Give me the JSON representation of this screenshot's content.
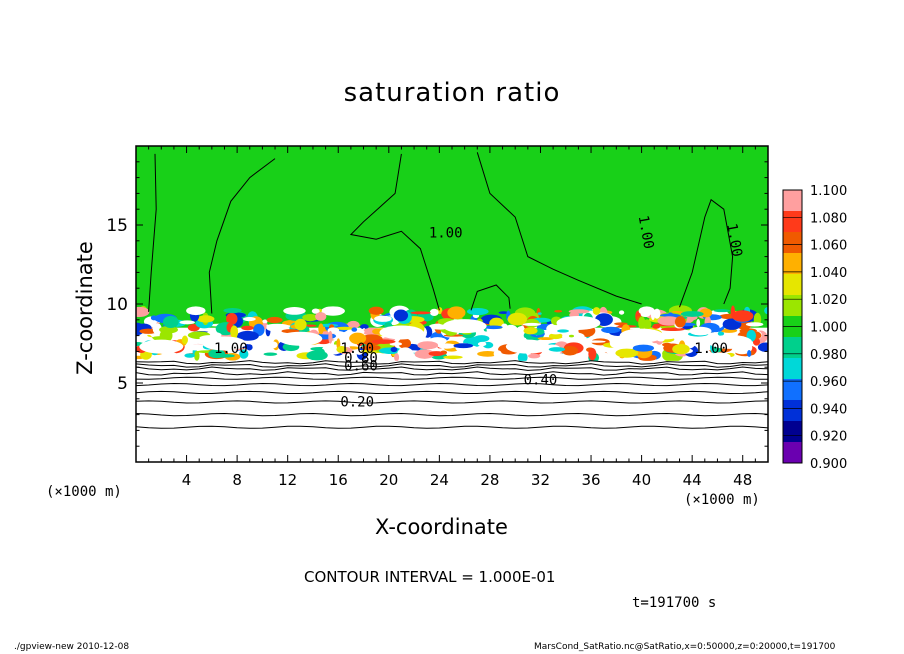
{
  "chart_data": {
    "type": "heatmap",
    "title": "saturation ratio",
    "xlabel": "X-coordinate",
    "ylabel": "Z-coordinate",
    "x_unit_label": "(×1000 m)",
    "xlim": [
      0,
      50
    ],
    "ylim": [
      0,
      20
    ],
    "x_ticks": [
      4,
      8,
      12,
      16,
      20,
      24,
      28,
      32,
      36,
      40,
      44,
      48
    ],
    "y_ticks": [
      5,
      10,
      15
    ],
    "colorbar": {
      "levels": [
        "1.100",
        "1.080",
        "1.060",
        "1.040",
        "1.020",
        "1.000",
        "0.980",
        "0.960",
        "0.940",
        "0.920",
        "0.900"
      ],
      "colors": [
        "#ff9f9f",
        "#ff3a1a",
        "#f05a00",
        "#ffb000",
        "#e6e600",
        "#9be600",
        "#18d018",
        "#00d08c",
        "#00d8d8",
        "#1070ff",
        "#0030d8",
        "#000090",
        "#6a00b0"
      ]
    },
    "contour_labels": [
      "1.00",
      "1.00",
      "1.00",
      "1.00",
      "1.00",
      "1.00",
      "0.80",
      "0.60",
      "0.40",
      "0.20"
    ],
    "contour_interval": "CONTOUR INTERVAL = 1.000E-01",
    "time_label": "t=191700 s"
  },
  "footer": {
    "left": "./gpview-new  2010-12-08",
    "right": "MarsCond_SatRatio.nc@SatRatio,x=0:50000,z=0:20000,t=191700"
  }
}
